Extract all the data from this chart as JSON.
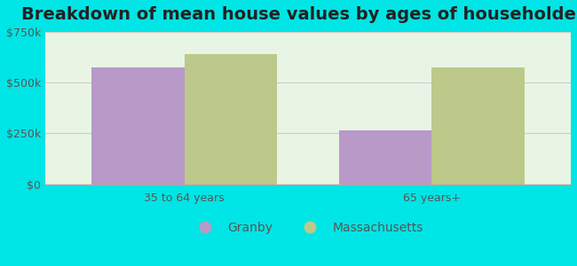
{
  "title": "Breakdown of mean house values by ages of householders",
  "categories": [
    "35 to 64 years",
    "65 years+"
  ],
  "granby_values": [
    575000,
    265000
  ],
  "mass_values": [
    640000,
    575000
  ],
  "granby_color": "#b899c8",
  "mass_color": "#bcc98a",
  "ylim": [
    0,
    750000
  ],
  "yticks": [
    0,
    250000,
    500000,
    750000
  ],
  "ytick_labels": [
    "$0",
    "$250k",
    "$500k",
    "$750k"
  ],
  "background_color": "#00e5e5",
  "plot_bg_color": "#e8f5e5",
  "legend_granby": "Granby",
  "legend_mass": "Massachusetts",
  "bar_width": 0.3,
  "title_fontsize": 14,
  "tick_fontsize": 9,
  "legend_fontsize": 10
}
